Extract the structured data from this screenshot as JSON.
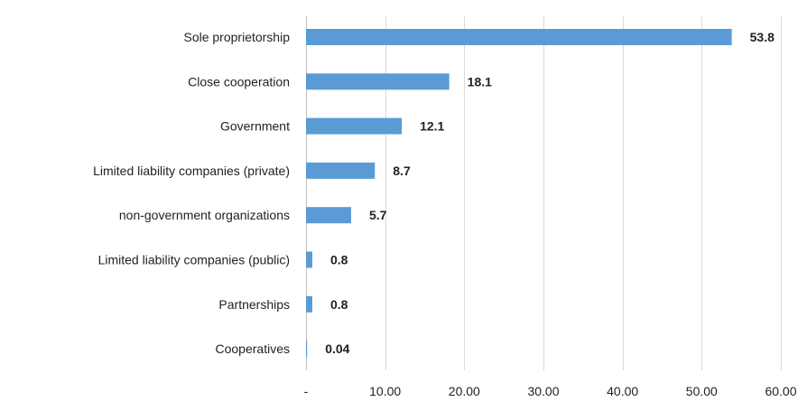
{
  "chart_data": {
    "type": "bar",
    "orientation": "horizontal",
    "categories": [
      "Sole proprietorship",
      "Close cooperation",
      "Government",
      "Limited liability companies (private)",
      "non-government organizations",
      "Limited liability companies (public)",
      "Partnerships",
      "Cooperatives"
    ],
    "values": [
      53.8,
      18.1,
      12.1,
      8.7,
      5.7,
      0.8,
      0.8,
      0.04
    ],
    "data_labels": [
      "53.8",
      "18.1",
      "12.1",
      "8.7",
      "5.7",
      "0.8",
      "0.8",
      "0.04"
    ],
    "xlim": [
      0,
      60
    ],
    "x_ticks": [
      0,
      10,
      20,
      30,
      40,
      50,
      60
    ],
    "x_tick_labels": [
      "-",
      "10.00",
      "20.00",
      "30.00",
      "40.00",
      "50.00",
      "60.00"
    ],
    "grid": true,
    "bar_color": "#5b9bd5",
    "title": "",
    "xlabel": "",
    "ylabel": ""
  }
}
